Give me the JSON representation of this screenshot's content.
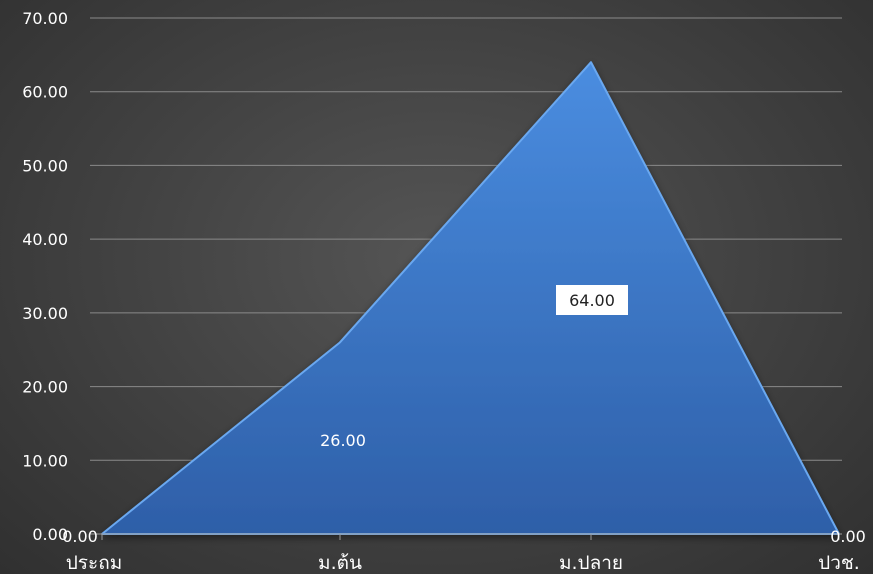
{
  "chart_data": {
    "type": "area",
    "categories": [
      "ประถม",
      "ม.ต้น",
      "ม.ปลาย",
      "ปวช."
    ],
    "values": [
      0,
      26,
      64,
      0
    ],
    "data_labels": [
      "0.00",
      "26.00",
      "64.00",
      "0.00"
    ],
    "title": "",
    "xlabel": "",
    "ylabel": "",
    "ylim": [
      0,
      70
    ],
    "yticks": [
      "0.00",
      "10.00",
      "20.00",
      "30.00",
      "40.00",
      "50.00",
      "60.00",
      "70.00"
    ],
    "grid": true,
    "legend": "none",
    "colors": {
      "area_fill_top": "#4a8de0",
      "area_fill_bottom": "#2e5fa8",
      "area_edge": "#6aa8f0",
      "background": "#4a4a4a",
      "gridline": "#8a8a8a",
      "label_box": "#ffffff"
    }
  }
}
